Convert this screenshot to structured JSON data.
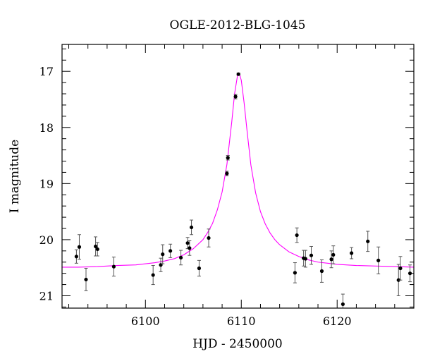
{
  "chart_data": {
    "type": "scatter",
    "title": "OGLE-2012-BLG-1045",
    "xlabel": "HJD - 2450000",
    "ylabel": "I magnitude",
    "xlim": [
      6091.3,
      6128.0
    ],
    "ylim": [
      21.22,
      16.52
    ],
    "y_inverted": true,
    "x_ticks": [
      6100,
      6110,
      6120
    ],
    "y_ticks": [
      17,
      18,
      19,
      20,
      21
    ],
    "x_tick_labels": [
      "6100",
      "6110",
      "6120"
    ],
    "y_tick_labels": [
      "17",
      "18",
      "19",
      "20",
      "21"
    ],
    "grid": false,
    "series": [
      {
        "kind": "points",
        "color": "#000000",
        "points": [
          {
            "x": 6092.8,
            "y": 20.3,
            "err": 0.12
          },
          {
            "x": 6093.1,
            "y": 20.13,
            "err": 0.22
          },
          {
            "x": 6093.8,
            "y": 20.71,
            "err": 0.2
          },
          {
            "x": 6094.8,
            "y": 20.12,
            "err": 0.17
          },
          {
            "x": 6095.0,
            "y": 20.17,
            "err": 0.12
          },
          {
            "x": 6096.7,
            "y": 20.48,
            "err": 0.17
          },
          {
            "x": 6100.8,
            "y": 20.63,
            "err": 0.17
          },
          {
            "x": 6101.6,
            "y": 20.45,
            "err": 0.12
          },
          {
            "x": 6101.8,
            "y": 20.26,
            "err": 0.17
          },
          {
            "x": 6102.6,
            "y": 20.2,
            "err": 0.12
          },
          {
            "x": 6103.7,
            "y": 20.32,
            "err": 0.13
          },
          {
            "x": 6104.4,
            "y": 20.06,
            "err": 0.1
          },
          {
            "x": 6104.6,
            "y": 20.15,
            "err": 0.13
          },
          {
            "x": 6104.8,
            "y": 19.78,
            "err": 0.13
          },
          {
            "x": 6105.6,
            "y": 20.51,
            "err": 0.14
          },
          {
            "x": 6106.6,
            "y": 19.97,
            "err": 0.16
          },
          {
            "x": 6108.5,
            "y": 18.82,
            "err": 0.04
          },
          {
            "x": 6108.6,
            "y": 18.54,
            "err": 0.04
          },
          {
            "x": 6109.4,
            "y": 17.45,
            "err": 0.04
          },
          {
            "x": 6109.7,
            "y": 17.05,
            "err": 0.02
          },
          {
            "x": 6115.6,
            "y": 20.59,
            "err": 0.18
          },
          {
            "x": 6115.8,
            "y": 19.92,
            "err": 0.13
          },
          {
            "x": 6116.5,
            "y": 20.33,
            "err": 0.14
          },
          {
            "x": 6116.7,
            "y": 20.34,
            "err": 0.15
          },
          {
            "x": 6117.3,
            "y": 20.28,
            "err": 0.16
          },
          {
            "x": 6118.4,
            "y": 20.56,
            "err": 0.2
          },
          {
            "x": 6119.4,
            "y": 20.35,
            "err": 0.15
          },
          {
            "x": 6119.6,
            "y": 20.27,
            "err": 0.16
          },
          {
            "x": 6120.6,
            "y": 21.15,
            "err": 0.18
          },
          {
            "x": 6121.5,
            "y": 20.24,
            "err": 0.1
          },
          {
            "x": 6123.2,
            "y": 20.03,
            "err": 0.18
          },
          {
            "x": 6124.3,
            "y": 20.37,
            "err": 0.24
          },
          {
            "x": 6126.4,
            "y": 20.72,
            "err": 0.28
          },
          {
            "x": 6126.6,
            "y": 20.51,
            "err": 0.21
          },
          {
            "x": 6127.6,
            "y": 20.6,
            "err": 0.15
          }
        ]
      },
      {
        "kind": "model-line",
        "color": "#ff00ff",
        "x": [
          6091.3,
          6093,
          6095,
          6097,
          6099,
          6101,
          6102,
          6103,
          6104,
          6105,
          6106,
          6106.5,
          6107,
          6107.5,
          6108,
          6108.5,
          6109,
          6109.3,
          6109.6,
          6109.8,
          6110.0,
          6110.3,
          6110.6,
          6111.0,
          6111.5,
          6112,
          6112.5,
          6113,
          6113.5,
          6114,
          6115,
          6116,
          6117,
          6118,
          6119,
          6120,
          6122,
          6124,
          6126,
          6128.0
        ],
        "y": [
          20.49,
          20.49,
          20.48,
          20.46,
          20.45,
          20.41,
          20.38,
          20.34,
          20.27,
          20.16,
          20.0,
          19.87,
          19.71,
          19.47,
          19.15,
          18.66,
          17.91,
          17.4,
          17.08,
          17.04,
          17.16,
          17.57,
          18.06,
          18.67,
          19.17,
          19.5,
          19.72,
          19.88,
          20.0,
          20.09,
          20.22,
          20.3,
          20.36,
          20.4,
          20.42,
          20.44,
          20.46,
          20.47,
          20.48,
          20.49
        ]
      }
    ]
  }
}
